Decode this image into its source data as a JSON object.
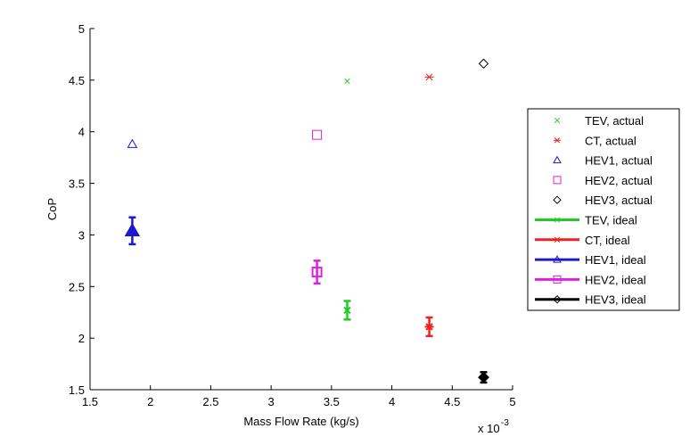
{
  "chart_data": {
    "type": "scatter",
    "xlabel": "Mass Flow Rate (kg/s)",
    "ylabel": "CoP",
    "x_multiplier_label": "x 10",
    "x_multiplier_exp": "-3",
    "xlim": [
      1.5,
      5
    ],
    "ylim": [
      1.5,
      5
    ],
    "xticks": [
      "1.5",
      "2",
      "2.5",
      "3",
      "3.5",
      "4",
      "4.5",
      "5"
    ],
    "yticks": [
      "1.5",
      "2",
      "2.5",
      "3",
      "3.5",
      "4",
      "4.5",
      "5"
    ],
    "grid": false,
    "legend_placement": "right",
    "series": [
      {
        "name": "TEV, actual",
        "color": "#22cc22",
        "marker": "x",
        "kind": "actual",
        "x": 3.63,
        "y": 4.49
      },
      {
        "name": "CT, actual",
        "color": "#ee2222",
        "marker": "asterisk",
        "kind": "actual",
        "x": 4.31,
        "y": 4.53
      },
      {
        "name": "HEV1, actual",
        "color": "#1a1acc",
        "marker": "triangle",
        "kind": "actual",
        "x": 1.85,
        "y": 3.88
      },
      {
        "name": "HEV2, actual",
        "color": "#dd22dd",
        "marker": "square",
        "kind": "actual",
        "x": 3.38,
        "y": 3.97
      },
      {
        "name": "HEV3, actual",
        "color": "#000000",
        "marker": "diamond",
        "kind": "actual",
        "x": 4.76,
        "y": 4.66
      },
      {
        "name": "TEV, ideal",
        "color": "#22cc22",
        "marker": "x",
        "kind": "ideal",
        "x": 3.63,
        "y": 2.27,
        "err": 0.09
      },
      {
        "name": "CT, ideal",
        "color": "#ee2222",
        "marker": "asterisk",
        "kind": "ideal",
        "x": 4.31,
        "y": 2.11,
        "err": 0.09
      },
      {
        "name": "HEV1, ideal",
        "color": "#1a1acc",
        "marker": "triangle",
        "kind": "ideal",
        "x": 1.85,
        "y": 3.04,
        "err": 0.13
      },
      {
        "name": "HEV2, ideal",
        "color": "#dd22dd",
        "marker": "square",
        "kind": "ideal",
        "x": 3.38,
        "y": 2.64,
        "err": 0.11
      },
      {
        "name": "HEV3, ideal",
        "color": "#000000",
        "marker": "diamond",
        "kind": "ideal",
        "x": 4.76,
        "y": 1.62,
        "err": 0.05
      }
    ]
  }
}
